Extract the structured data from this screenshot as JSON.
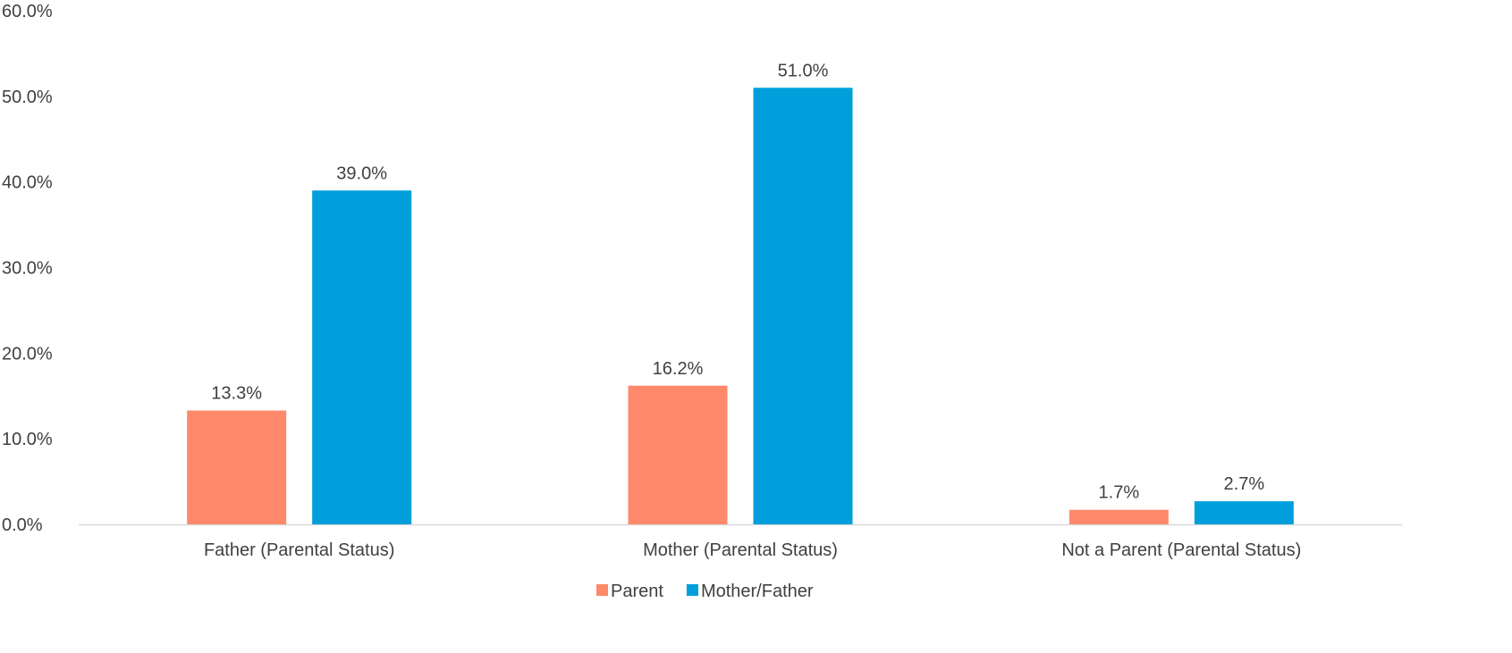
{
  "chart_data": {
    "type": "bar",
    "categories": [
      "Father (Parental Status)",
      "Mother (Parental Status)",
      "Not a Parent (Parental Status)"
    ],
    "series": [
      {
        "name": "Parent",
        "values": [
          13.3,
          16.2,
          1.7
        ],
        "color": "#FF896B"
      },
      {
        "name": "Mother/Father",
        "values": [
          39.0,
          51.0,
          2.7
        ],
        "color": "#009FDB"
      }
    ],
    "ylim": [
      0,
      60
    ],
    "yticks": [
      0,
      10,
      20,
      30,
      40,
      50,
      60
    ],
    "ytick_labels": [
      "0.0%",
      "10.0%",
      "20.0%",
      "30.0%",
      "40.0%",
      "50.0%",
      "60.0%"
    ],
    "data_labels": [
      [
        "13.3%",
        "16.2%",
        "1.7%"
      ],
      [
        "39.0%",
        "51.0%",
        "2.7%"
      ]
    ],
    "title": "",
    "xlabel": "",
    "ylabel": "",
    "grid": false,
    "legend_position": "bottom"
  },
  "colors": {
    "axis_line": "#D9D9D9",
    "text": "#404040"
  }
}
